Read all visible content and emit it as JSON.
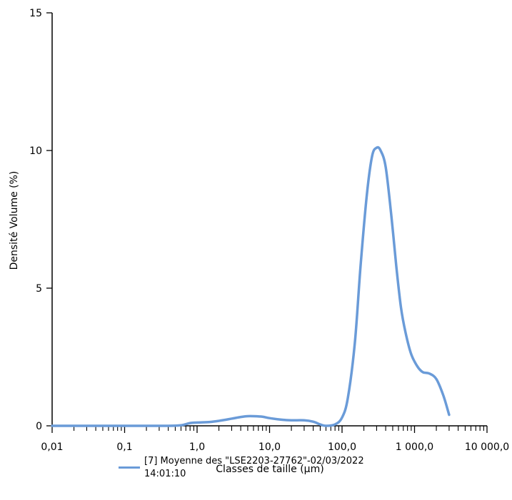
{
  "chart_data": {
    "type": "line",
    "xlabel": "Classes de taille (µm)",
    "ylabel": "Densité Volume (%)",
    "xscale": "log",
    "xlim": [
      0.01,
      10000
    ],
    "ylim": [
      0,
      15
    ],
    "x_ticks": [
      "0,01",
      "0,1",
      "1,0",
      "10,0",
      "100,0",
      "1 000,0",
      "10 000,0"
    ],
    "y_ticks": [
      "0",
      "5",
      "10",
      "15"
    ],
    "grid": false,
    "legend_position": "bottom",
    "series": [
      {
        "name": "[7] Moyenne des \"LSE2203-27762\"-02/03/2022 14:01:10",
        "color": "#6a9bd8",
        "x": [
          0.01,
          0.1,
          0.4,
          0.6,
          0.8,
          1.0,
          1.5,
          2.0,
          3.0,
          4.0,
          5.0,
          6.0,
          8.0,
          10.0,
          15.0,
          20.0,
          30.0,
          40.0,
          50.0,
          60.0,
          80.0,
          100.0,
          120.0,
          150.0,
          180.0,
          220.0,
          260.0,
          300.0,
          340.0,
          400.0,
          480.0,
          560.0,
          650.0,
          750.0,
          900.0,
          1100.0,
          1300.0,
          1600.0,
          2000.0,
          2500.0,
          3000.0
        ],
        "values": [
          0.0,
          0.0,
          0.0,
          0.02,
          0.1,
          0.12,
          0.14,
          0.18,
          0.26,
          0.32,
          0.35,
          0.35,
          0.33,
          0.28,
          0.22,
          0.2,
          0.2,
          0.15,
          0.05,
          0.0,
          0.05,
          0.3,
          1.0,
          3.0,
          5.8,
          8.4,
          9.8,
          10.1,
          10.0,
          9.4,
          7.6,
          5.8,
          4.3,
          3.4,
          2.6,
          2.15,
          1.95,
          1.9,
          1.7,
          1.1,
          0.4
        ]
      }
    ]
  }
}
